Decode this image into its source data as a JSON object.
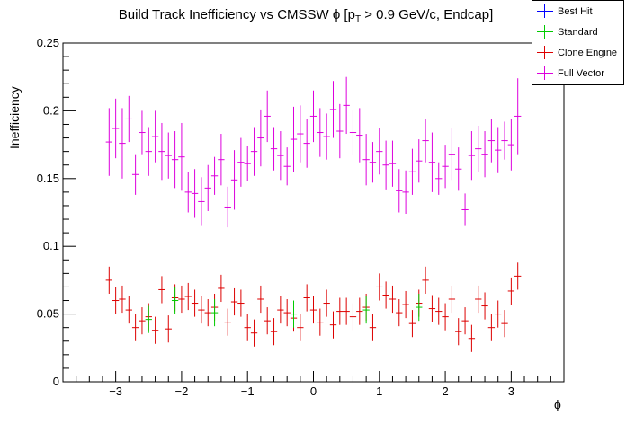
{
  "chart_data": {
    "type": "scatter",
    "title_main": "Build Track Inefficiency vs CMSSW ",
    "title_phi": "ϕ",
    "title_p": " [p",
    "title_sub": "T",
    "title_tail": " > 0.9 GeV/c, Endcap]",
    "xlabel": "ϕ",
    "ylabel": "Inefficiency",
    "xlim": [
      -3.8,
      3.8
    ],
    "ylim": [
      0,
      0.25
    ],
    "xticks": [
      -3,
      -2,
      -1,
      0,
      1,
      2,
      3
    ],
    "xtick_labels": [
      "−3",
      "−2",
      "−1",
      "0",
      "1",
      "2",
      "3"
    ],
    "yticks": [
      0,
      0.05,
      0.1,
      0.15,
      0.2,
      0.25
    ],
    "ytick_labels": [
      "0",
      "0.05",
      "0.1",
      "0.15",
      "0.2",
      "0.25"
    ],
    "x_bin_width": 0.1,
    "legend": {
      "placement": "top-right",
      "items": [
        {
          "label": "Best Hit",
          "color": "#0000ff"
        },
        {
          "label": "Standard",
          "color": "#00cc00"
        },
        {
          "label": "Clone Engine",
          "color": "#dd0000"
        },
        {
          "label": "Full Vector",
          "color": "#dd00dd"
        }
      ]
    },
    "series": [
      {
        "name": "Full Vector",
        "color": "#dd00dd",
        "x": [
          -3.1,
          -3.0,
          -2.9,
          -2.8,
          -2.7,
          -2.6,
          -2.5,
          -2.4,
          -2.3,
          -2.2,
          -2.1,
          -2.0,
          -1.9,
          -1.8,
          -1.7,
          -1.6,
          -1.5,
          -1.4,
          -1.3,
          -1.2,
          -1.1,
          -1.0,
          -0.9,
          -0.8,
          -0.7,
          -0.6,
          -0.5,
          -0.4,
          -0.3,
          -0.2,
          -0.1,
          0.0,
          0.1,
          0.2,
          0.3,
          0.4,
          0.5,
          0.6,
          0.7,
          0.8,
          0.9,
          1.0,
          1.1,
          1.2,
          1.3,
          1.4,
          1.5,
          1.6,
          1.7,
          1.8,
          1.9,
          2.0,
          2.1,
          2.2,
          2.3,
          2.4,
          2.5,
          2.6,
          2.7,
          2.8,
          2.9,
          3.0,
          3.1
        ],
        "y": [
          0.177,
          0.187,
          0.176,
          0.194,
          0.153,
          0.184,
          0.17,
          0.181,
          0.17,
          0.167,
          0.164,
          0.166,
          0.14,
          0.139,
          0.133,
          0.143,
          0.152,
          0.164,
          0.129,
          0.149,
          0.162,
          0.161,
          0.17,
          0.18,
          0.196,
          0.172,
          0.167,
          0.159,
          0.179,
          0.183,
          0.176,
          0.196,
          0.184,
          0.181,
          0.201,
          0.185,
          0.204,
          0.184,
          0.182,
          0.164,
          0.162,
          0.17,
          0.16,
          0.161,
          0.141,
          0.14,
          0.155,
          0.163,
          0.178,
          0.162,
          0.15,
          0.159,
          0.168,
          0.157,
          0.127,
          0.167,
          0.172,
          0.168,
          0.178,
          0.171,
          0.178,
          0.175,
          0.196
        ],
        "err": [
          0.025,
          0.022,
          0.026,
          0.017,
          0.015,
          0.016,
          0.018,
          0.019,
          0.021,
          0.017,
          0.021,
          0.025,
          0.015,
          0.018,
          0.018,
          0.017,
          0.014,
          0.019,
          0.015,
          0.022,
          0.018,
          0.013,
          0.018,
          0.021,
          0.019,
          0.016,
          0.018,
          0.014,
          0.024,
          0.021,
          0.018,
          0.019,
          0.018,
          0.017,
          0.021,
          0.02,
          0.021,
          0.017,
          0.02,
          0.019,
          0.015,
          0.017,
          0.018,
          0.017,
          0.016,
          0.016,
          0.017,
          0.016,
          0.016,
          0.022,
          0.012,
          0.016,
          0.019,
          0.016,
          0.012,
          0.018,
          0.017,
          0.017,
          0.016,
          0.017,
          0.014,
          0.019,
          0.028
        ]
      },
      {
        "name": "Clone Engine",
        "color": "#dd0000",
        "x": [
          -3.1,
          -3.0,
          -2.9,
          -2.8,
          -2.7,
          -2.6,
          -2.5,
          -2.4,
          -2.3,
          -2.2,
          -2.1,
          -2.0,
          -1.9,
          -1.8,
          -1.7,
          -1.6,
          -1.5,
          -1.4,
          -1.3,
          -1.2,
          -1.1,
          -1.0,
          -0.9,
          -0.8,
          -0.7,
          -0.6,
          -0.5,
          -0.4,
          -0.3,
          -0.2,
          -0.1,
          0.0,
          0.1,
          0.2,
          0.3,
          0.4,
          0.5,
          0.6,
          0.7,
          0.8,
          0.9,
          1.0,
          1.1,
          1.2,
          1.3,
          1.4,
          1.5,
          1.6,
          1.7,
          1.8,
          1.9,
          2.0,
          2.1,
          2.2,
          2.3,
          2.4,
          2.5,
          2.6,
          2.7,
          2.8,
          2.9,
          3.0,
          3.1
        ],
        "y": [
          0.075,
          0.06,
          0.061,
          0.053,
          0.04,
          0.045,
          0.048,
          0.038,
          0.068,
          0.039,
          0.062,
          0.061,
          0.063,
          0.058,
          0.053,
          0.051,
          0.055,
          0.069,
          0.044,
          0.059,
          0.058,
          0.04,
          0.036,
          0.061,
          0.045,
          0.037,
          0.053,
          0.051,
          0.047,
          0.04,
          0.062,
          0.053,
          0.044,
          0.058,
          0.042,
          0.052,
          0.052,
          0.048,
          0.052,
          0.055,
          0.04,
          0.07,
          0.064,
          0.061,
          0.051,
          0.057,
          0.043,
          0.058,
          0.075,
          0.054,
          0.052,
          0.048,
          0.061,
          0.037,
          0.045,
          0.032,
          0.061,
          0.056,
          0.04,
          0.05,
          0.043,
          0.067,
          0.078
        ]
      },
      {
        "name": "Standard",
        "color": "#00cc00",
        "x": [
          -2.5,
          -2.1,
          -1.5,
          -0.3,
          0.8,
          1.6
        ],
        "y": [
          0.046,
          0.06,
          0.051,
          0.05,
          0.053,
          0.055
        ]
      }
    ]
  }
}
